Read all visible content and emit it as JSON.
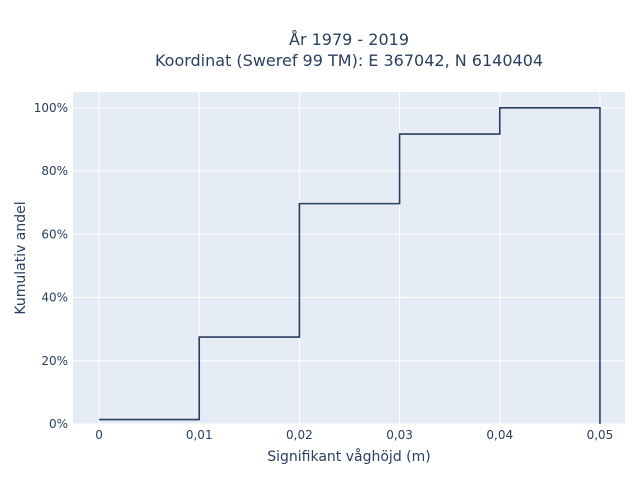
{
  "chart_data": {
    "type": "line",
    "line_shape": "step",
    "title": "År 1979 - 2019",
    "subtitle": "Koordinat (Sweref 99 TM): E 367042, N 6140404",
    "xlabel": "Signifikant våghöjd (m)",
    "ylabel": "Kumulativ andel",
    "xlim": [
      -0.0026,
      0.0525
    ],
    "ylim": [
      0,
      1.05
    ],
    "x_ticks": [
      0,
      0.01,
      0.02,
      0.03,
      0.04,
      0.05
    ],
    "x_tick_labels": [
      "0",
      "0,01",
      "0,02",
      "0,03",
      "0,04",
      "0,05"
    ],
    "y_ticks": [
      0,
      0.2,
      0.4,
      0.6,
      0.8,
      1.0
    ],
    "y_tick_labels": [
      "0%",
      "20%",
      "40%",
      "60%",
      "80%",
      "100%"
    ],
    "grid": true,
    "colors": {
      "plot_background": "#e5ecf6",
      "grid": "#ffffff",
      "line": "#2a3f5f"
    },
    "series": [
      {
        "x": [
          0,
          0.01,
          0.01,
          0.02,
          0.02,
          0.03,
          0.03,
          0.04,
          0.04,
          0.05,
          0.05
        ],
        "y": [
          0.014,
          0.014,
          0.275,
          0.275,
          0.697,
          0.697,
          0.917,
          0.917,
          1.0,
          1.0,
          0
        ]
      }
    ]
  }
}
